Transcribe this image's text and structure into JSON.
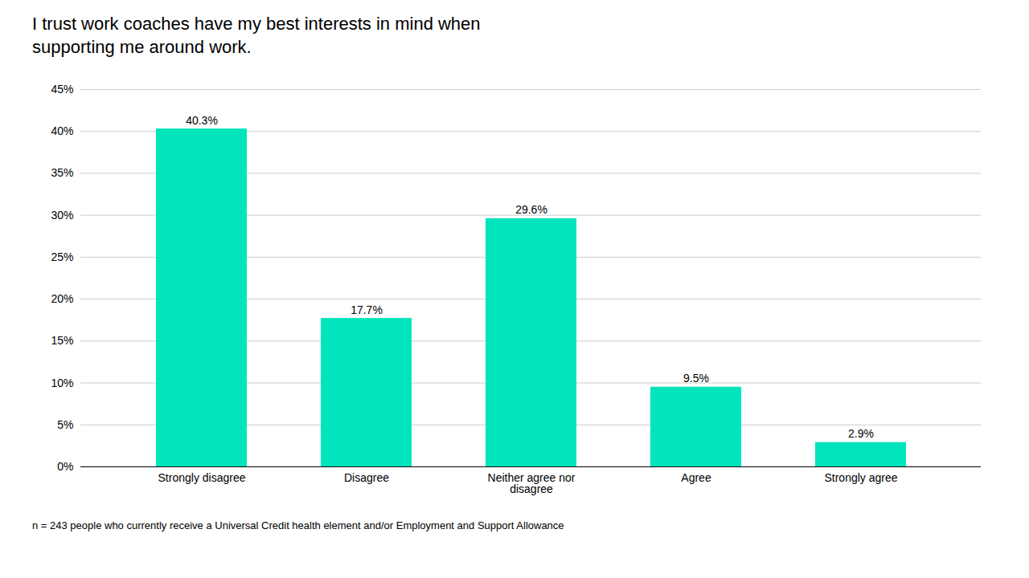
{
  "chart_data": {
    "type": "bar",
    "title": "I trust work coaches have my best interests in mind when\nsupporting me around work.",
    "categories": [
      "Strongly disagree",
      "Disagree",
      "Neither agree nor\ndisagree",
      "Agree",
      "Strongly agree"
    ],
    "values": [
      40.3,
      17.7,
      29.6,
      9.5,
      2.9
    ],
    "value_labels": [
      "40.3%",
      "17.7%",
      "29.6%",
      "9.5%",
      "2.9%"
    ],
    "data_labels": true,
    "color": "#00E5BB",
    "ylim": [
      0,
      45
    ],
    "yticks": [
      {
        "value": 0,
        "label": "0%"
      },
      {
        "value": 5,
        "label": "5%"
      },
      {
        "value": 10,
        "label": "10%"
      },
      {
        "value": 15,
        "label": "15%"
      },
      {
        "value": 20,
        "label": "20%"
      },
      {
        "value": 25,
        "label": "25%"
      },
      {
        "value": 30,
        "label": "30%"
      },
      {
        "value": 35,
        "label": "35%"
      },
      {
        "value": 40,
        "label": "40%"
      },
      {
        "value": 45,
        "label": "45%"
      }
    ],
    "grid": true,
    "note": "n = 243 people who currently receive a Universal Credit health element and/or Employment and Support Allowance"
  }
}
